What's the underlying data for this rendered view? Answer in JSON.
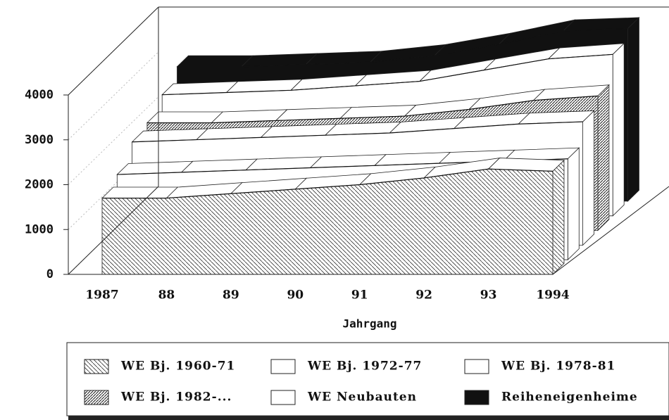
{
  "chart_data": {
    "type": "area3d",
    "x_label": "Jahrgang",
    "categories": [
      "1987",
      "88",
      "89",
      "90",
      "91",
      "92",
      "93",
      "1994"
    ],
    "ylim": [
      0,
      4000
    ],
    "yticks": [
      0,
      1000,
      2000,
      3000,
      4000
    ],
    "grid": true,
    "series": [
      {
        "name": "WE Bj. 1960-71",
        "color": "#ffffff",
        "hatch": "sparse",
        "values": [
          1700,
          1700,
          1800,
          1900,
          2000,
          2150,
          2350,
          2300
        ]
      },
      {
        "name": "WE Bj. 1972-77",
        "color": "#ffffff",
        "values": [
          1900,
          1950,
          2000,
          2050,
          2100,
          2150,
          2200,
          2250
        ]
      },
      {
        "name": "WE Bj. 1978-81",
        "color": "#ffffff",
        "values": [
          2300,
          2350,
          2400,
          2450,
          2500,
          2600,
          2700,
          2750
        ]
      },
      {
        "name": "WE Bj. 1982-...",
        "color": "#ffffff",
        "hatch": "dense",
        "values": [
          2400,
          2400,
          2450,
          2500,
          2550,
          2700,
          2900,
          3000
        ]
      },
      {
        "name": "WE Neubauten",
        "color": "#ffffff",
        "values": [
          2700,
          2750,
          2800,
          2900,
          3000,
          3250,
          3500,
          3600
        ]
      },
      {
        "name": "Reiheneigenheime",
        "color": "#111111",
        "values": [
          3000,
          3000,
          3050,
          3100,
          3250,
          3500,
          3800,
          3850
        ]
      }
    ]
  }
}
